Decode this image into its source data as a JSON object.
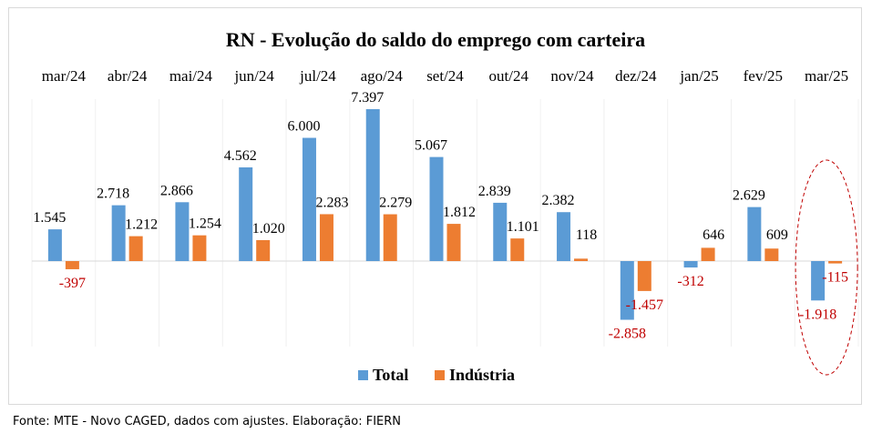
{
  "source_note": "Fonte: MTE - Novo CAGED, dados com ajustes. Elaboração: FIERN",
  "chart_data": {
    "type": "bar",
    "title": "RN - Evolução do saldo do emprego com carteira",
    "categories": [
      "mar/24",
      "abr/24",
      "mai/24",
      "jun/24",
      "jul/24",
      "ago/24",
      "set/24",
      "out/24",
      "nov/24",
      "dez/24",
      "jan/25",
      "fev/25",
      "mar/25"
    ],
    "series": [
      {
        "name": "Total",
        "color": "#5b9bd5",
        "values": [
          1545,
          2718,
          2866,
          4562,
          6000,
          7397,
          5067,
          2839,
          2382,
          -2858,
          -312,
          2629,
          -1918
        ],
        "labels": [
          "1.545",
          "2.718",
          "2.866",
          "4.562",
          "6.000",
          "7.397",
          "5.067",
          "2.839",
          "2.382",
          "-2.858",
          "-312",
          "2.629",
          "-1.918"
        ]
      },
      {
        "name": "Indústria",
        "color": "#ed7d31",
        "values": [
          -397,
          1212,
          1254,
          1020,
          2283,
          2279,
          1812,
          1101,
          118,
          -1457,
          646,
          609,
          -115
        ],
        "labels": [
          "-397",
          "1.212",
          "1.254",
          "1.020",
          "2.283",
          "2.279",
          "1.812",
          "1.101",
          "118",
          "-1.457",
          "646",
          "609",
          "-115"
        ]
      }
    ],
    "negative_label_color": "#c00000",
    "highlight": {
      "category": "mar/25",
      "shape": "dashed-ellipse",
      "color": "#c00000"
    },
    "legend_position": "bottom",
    "grid": false,
    "xlabel": "",
    "ylabel": ""
  }
}
